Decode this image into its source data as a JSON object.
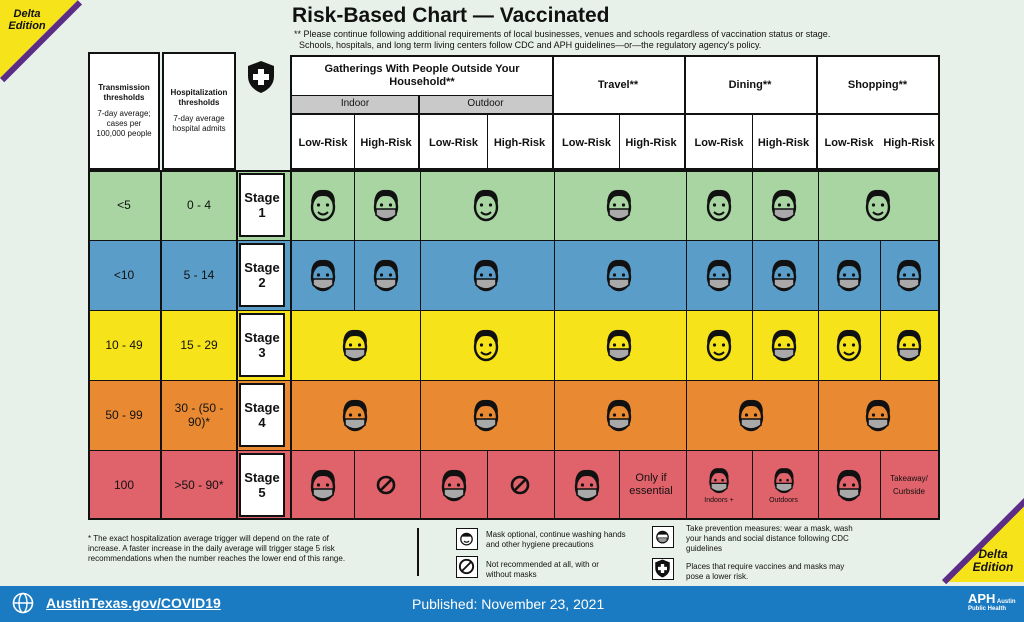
{
  "edition_badge": {
    "line1": "Delta",
    "line2": "Edition"
  },
  "title": "Risk-Based Chart — Vaccinated",
  "note_line1": "** Please continue following additional requirements of local businesses, venues and schools regardless of vaccination status or stage.",
  "note_line2": "Schools, hospitals, and long term living centers follow CDC and APH guidelines—or—the regulatory agency's policy.",
  "header": {
    "transmission_title": "Transmission thresholds",
    "transmission_sub": "7-day average; cases per 100,000 people",
    "hosp_title": "Hospitalization thresholds",
    "hosp_sub": "7-day average hospital admits",
    "gatherings": "Gatherings With People Outside Your Household**",
    "indoor": "Indoor",
    "outdoor": "Outdoor",
    "travel": "Travel**",
    "dining": "Dining**",
    "shopping": "Shopping**",
    "low": "Low-Risk",
    "high": "High-Risk"
  },
  "rows": [
    {
      "transmission": "<5",
      "hosp": "0 - 4",
      "stage": "Stage",
      "num": "1",
      "color": "#a8d5a2"
    },
    {
      "transmission": "<10",
      "hosp": "5 - 14",
      "stage": "Stage",
      "num": "2",
      "color": "#5b9dc9"
    },
    {
      "transmission": "10 - 49",
      "hosp": "15 - 29",
      "stage": "Stage",
      "num": "3",
      "color": "#f6e31a"
    },
    {
      "transmission": "50 - 99",
      "hosp": "30 - (50 - 90)*",
      "stage": "Stage",
      "num": "4",
      "color": "#e98a33"
    },
    {
      "transmission": "100",
      "hosp": ">50 - 90*",
      "stage": "Stage",
      "num": "5",
      "color": "#e0626a"
    }
  ],
  "cells_text": {
    "travel_high_5": "Only if essential",
    "dining_low_5_note": "Indoors +",
    "dining_high_5_note": "Outdoors",
    "shopping_high_5": "Takeaway/ Curbside"
  },
  "footnote": "* The exact hospitalization average trigger will depend on the rate of increase. A faster increase in the daily average will trigger stage 5 risk recommendations when the number reaches the lower end of this range.",
  "legend": {
    "mask_optional": "Mask optional, continue washing hands and other hygiene precautions",
    "not_recommended": "Not recommended at all, with or without masks",
    "prevention": "Take prevention measures: wear a mask, wash your hands and social distance following CDC guidelines",
    "vaccine_places": "Places that require vaccines and masks may pose a lower risk."
  },
  "footer": {
    "link": "AustinTexas.gov/COVID19",
    "published": "Published: November 23, 2021",
    "logo": "Austin Public Health"
  }
}
